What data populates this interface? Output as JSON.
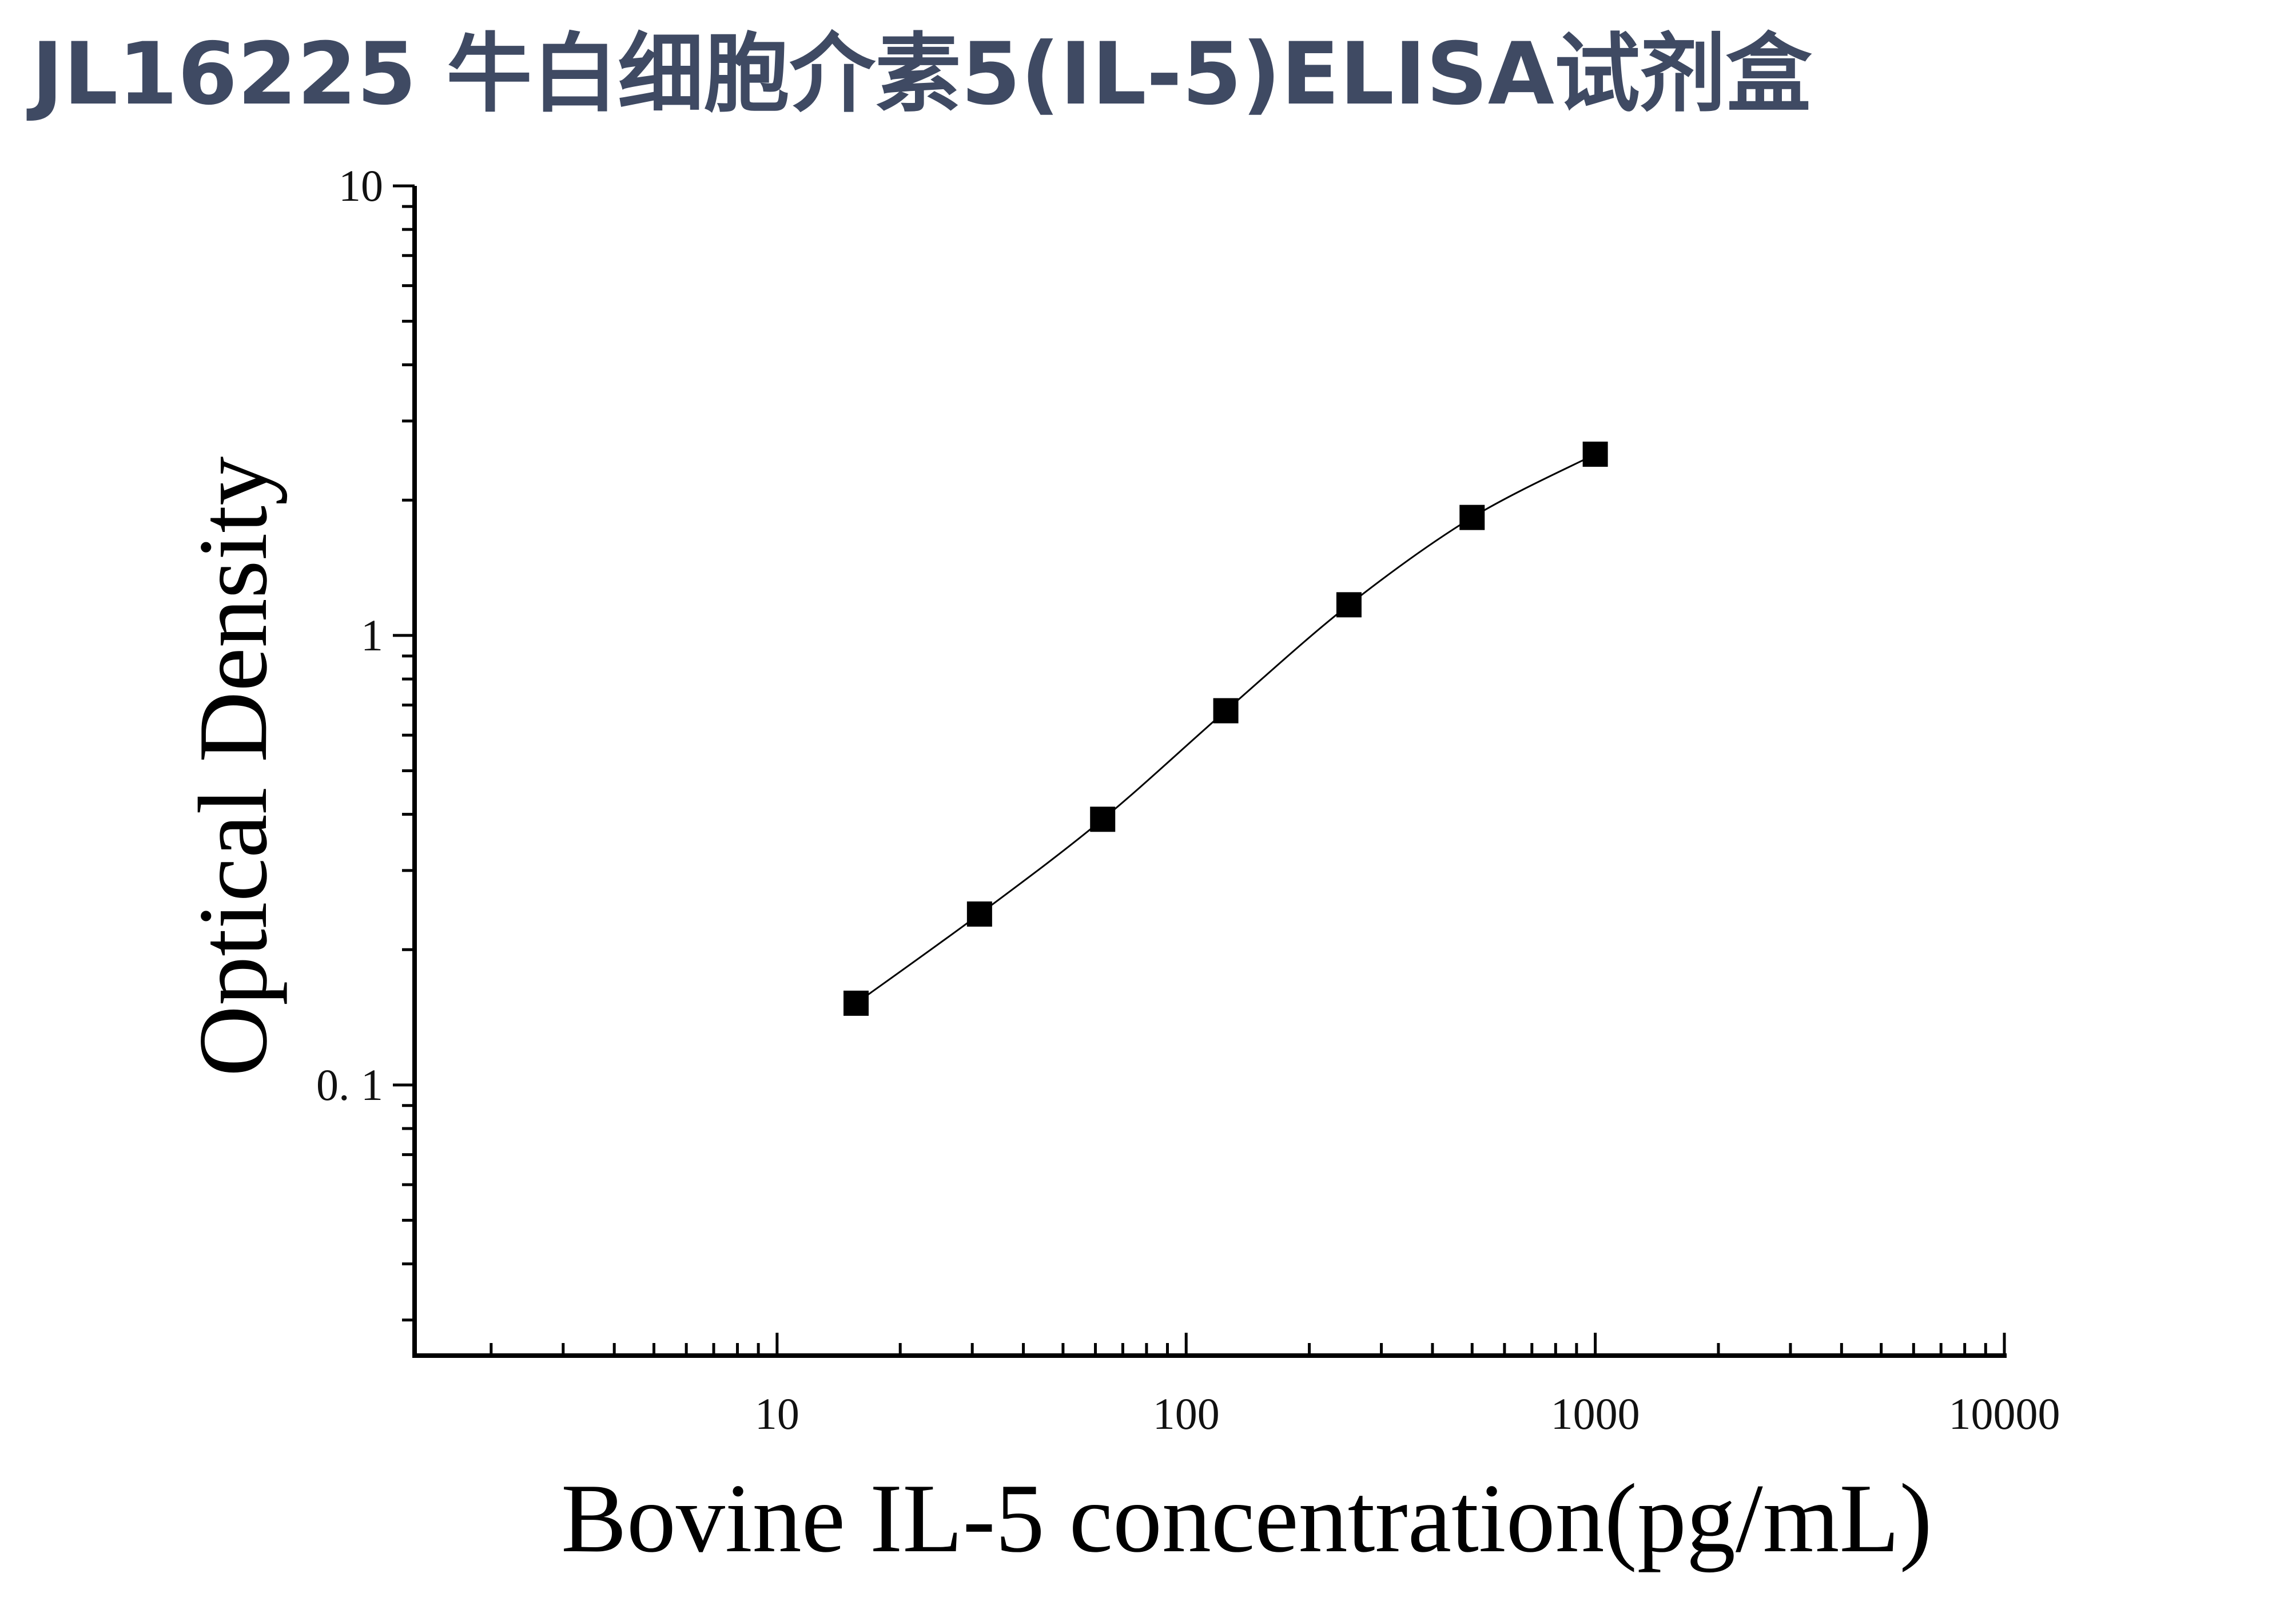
{
  "title": "JL16225 牛白细胞介素5(IL-5)ELISA试剂盒",
  "chart_data": {
    "type": "scatter",
    "title": "JL16225 牛白细胞介素5(IL-5)ELISA试剂盒",
    "xlabel": "Bovine IL-5 concentration(pg/mL)",
    "ylabel": "Optical Density",
    "x_scale": "log",
    "y_scale": "log",
    "xlim": [
      1.3,
      10000
    ],
    "ylim": [
      0.025,
      10
    ],
    "x_ticks": [
      {
        "value": 10,
        "label": "10"
      },
      {
        "value": 100,
        "label": "100"
      },
      {
        "value": 1000,
        "label": "1000"
      },
      {
        "value": 10000,
        "label": "10000"
      }
    ],
    "y_ticks": [
      {
        "value": 0.1,
        "label": "0. 1"
      },
      {
        "value": 1,
        "label": "1"
      },
      {
        "value": 10,
        "label": "10"
      }
    ],
    "grid": false,
    "fit_curve": true,
    "marker": "square",
    "color": "#000000",
    "series": [
      {
        "x": [
          15.6,
          31.25,
          62.5,
          125,
          250,
          500,
          1000
        ],
        "y": [
          0.152,
          0.24,
          0.39,
          0.68,
          1.17,
          1.83,
          2.53
        ]
      }
    ]
  }
}
